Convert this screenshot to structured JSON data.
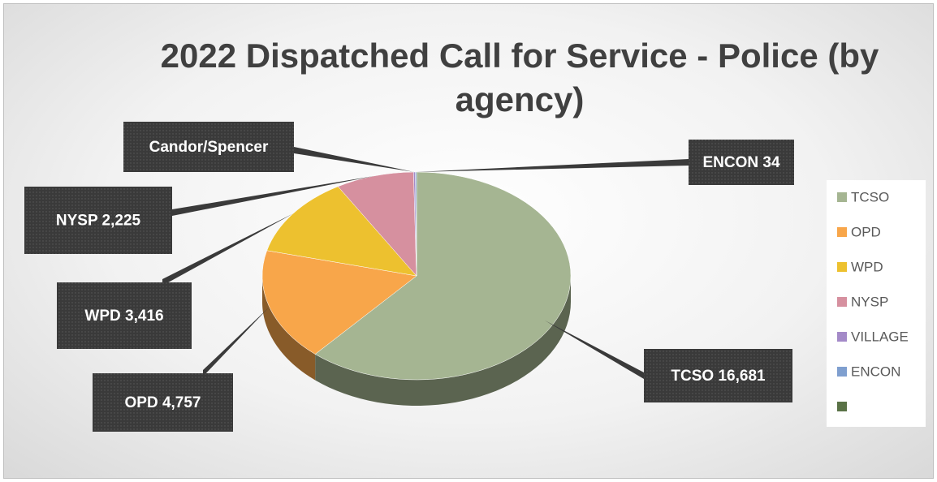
{
  "chart_data": {
    "type": "pie",
    "title": "2022 Dispatched Call for Service - Police (by agency)",
    "categories": [
      "TCSO",
      "OPD",
      "WPD",
      "NYSP",
      "VILLAGE",
      "ENCON",
      null
    ],
    "values": [
      16681,
      4757,
      3416,
      2225,
      50,
      34,
      0
    ],
    "value_labels": [
      "TCSO 16,681",
      "OPD 4,757",
      "WPD 3,416",
      "NYSP 2,225",
      "Candor/Spencer",
      "ENCON 34",
      null
    ],
    "colors": [
      "#a5b592",
      "#f8a64a",
      "#edc12f",
      "#d6909f",
      "#a48ac8",
      "#7f9fcf",
      "#5a7246"
    ],
    "legend": "right"
  }
}
